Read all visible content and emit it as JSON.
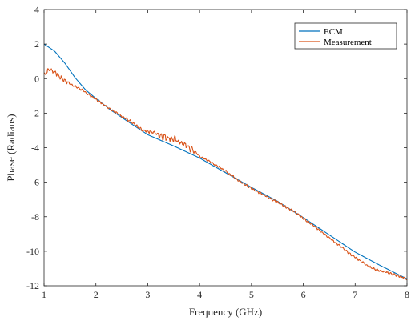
{
  "chart_data": {
    "type": "line",
    "xlabel": "Frequency (GHz)",
    "ylabel": "Phase (Radians)",
    "xlim": [
      1,
      8
    ],
    "ylim": [
      -12,
      4
    ],
    "xticks": [
      1,
      2,
      3,
      4,
      5,
      6,
      7,
      8
    ],
    "yticks": [
      4,
      2,
      0,
      -2,
      -4,
      -6,
      -8,
      -10,
      -12
    ],
    "grid": false,
    "legend_position": "top-right",
    "series": [
      {
        "name": "ECM",
        "color": "#0072bd",
        "style": "smooth",
        "x": [
          1.0,
          1.2,
          1.4,
          1.6,
          1.8,
          2.0,
          2.3,
          2.6,
          3.0,
          3.5,
          4.0,
          4.5,
          5.0,
          5.5,
          6.0,
          6.5,
          7.0,
          7.5,
          8.0
        ],
        "y": [
          2.0,
          1.6,
          0.9,
          0.05,
          -0.65,
          -1.15,
          -1.85,
          -2.45,
          -3.25,
          -3.9,
          -4.6,
          -5.45,
          -6.3,
          -7.1,
          -8.05,
          -9.05,
          -10.05,
          -10.85,
          -11.6
        ]
      },
      {
        "name": "Measurement",
        "color": "#d95319",
        "style": "noisy",
        "x": [
          1.0,
          1.1,
          1.2,
          1.3,
          1.5,
          1.7,
          2.0,
          2.3,
          2.6,
          2.9,
          3.1,
          3.3,
          3.5,
          3.7,
          3.9,
          4.0,
          4.2,
          4.5,
          4.8,
          5.0,
          5.3,
          5.5,
          5.8,
          6.0,
          6.3,
          6.6,
          6.9,
          7.1,
          7.3,
          7.5,
          7.7,
          7.9,
          8.0
        ],
        "y": [
          0.2,
          0.55,
          0.4,
          0.1,
          -0.3,
          -0.6,
          -1.2,
          -1.8,
          -2.35,
          -3.0,
          -3.1,
          -3.35,
          -3.5,
          -3.8,
          -4.2,
          -4.5,
          -4.8,
          -5.35,
          -6.0,
          -6.35,
          -6.85,
          -7.15,
          -7.65,
          -8.1,
          -8.75,
          -9.45,
          -10.15,
          -10.55,
          -10.95,
          -11.15,
          -11.3,
          -11.5,
          -11.6
        ]
      }
    ]
  }
}
